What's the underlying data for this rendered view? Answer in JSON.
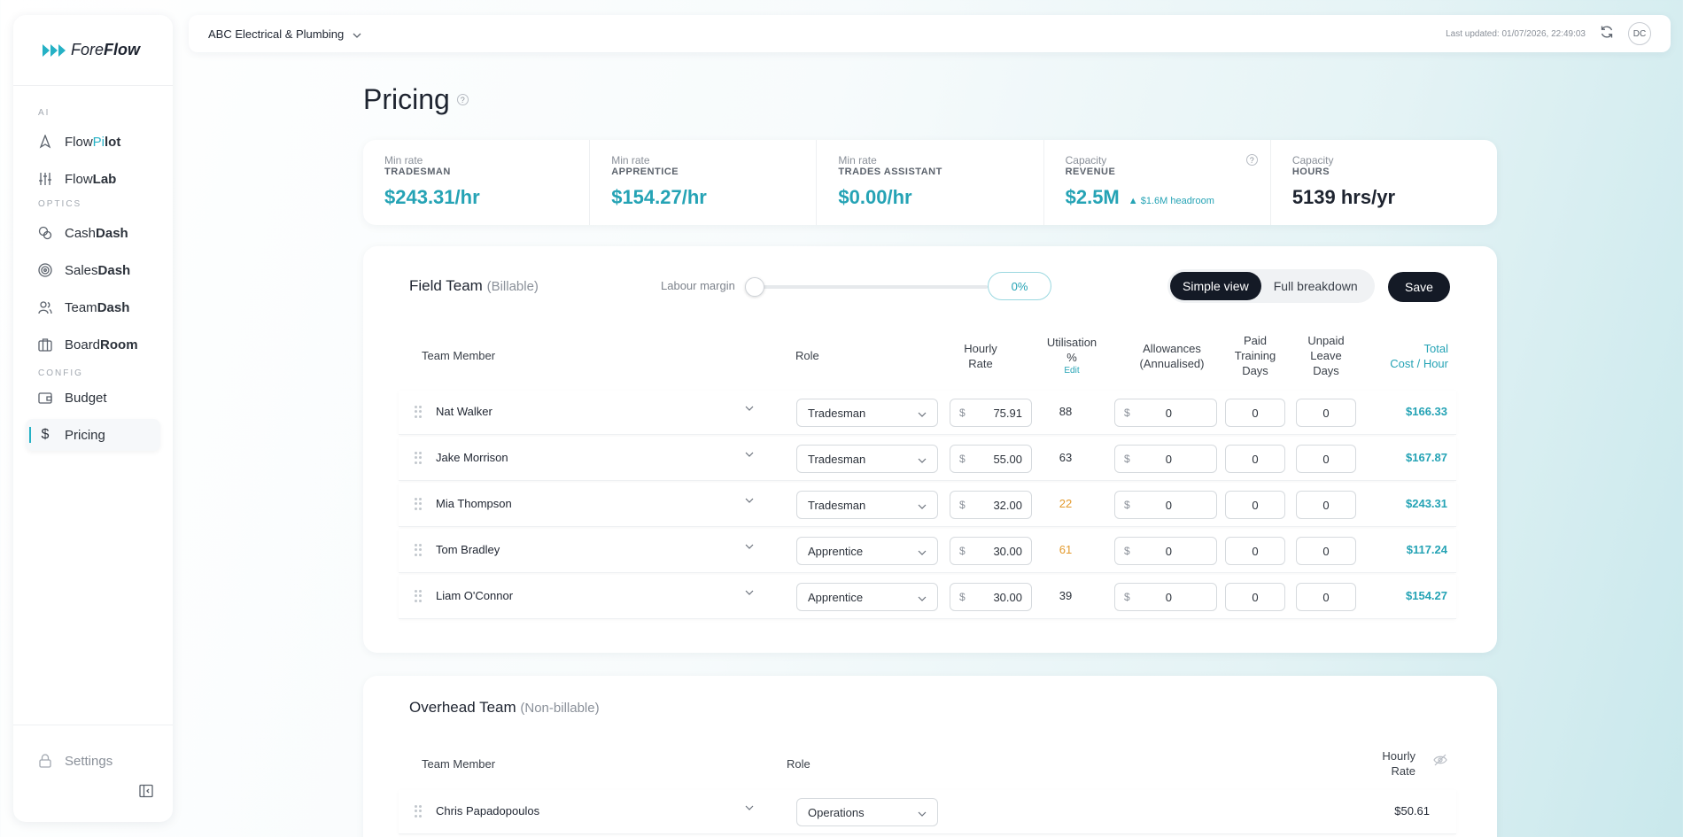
{
  "brand": {
    "name_light": "Fore",
    "name_bold": "Flow"
  },
  "sidebar": {
    "sections": {
      "ai": "AI",
      "optics": "OPTICS",
      "config": "CONFIG"
    },
    "items": [
      {
        "light": "Flow",
        "accent": "Pi",
        "bold": "lot",
        "icon": "rocket-icon"
      },
      {
        "light": "Flow",
        "accent": "",
        "bold": "Lab",
        "icon": "sliders-icon"
      },
      {
        "light": "Cash",
        "accent": "",
        "bold": "Dash",
        "icon": "coins-icon"
      },
      {
        "light": "Sales",
        "accent": "",
        "bold": "Dash",
        "icon": "target-icon"
      },
      {
        "light": "Team",
        "accent": "",
        "bold": "Dash",
        "icon": "team-icon"
      },
      {
        "light": "Board",
        "accent": "",
        "bold": "Room",
        "icon": "briefcase-icon"
      },
      {
        "light": "Budget",
        "accent": "",
        "bold": "",
        "icon": "wallet-icon"
      },
      {
        "light": "Pricing",
        "accent": "",
        "bold": "",
        "icon": "dollar-icon"
      }
    ],
    "settings": "Settings"
  },
  "topbar": {
    "company": "ABC Electrical & Plumbing",
    "updated": "Last updated: 01/07/2026, 22:49:03",
    "avatar": "DC"
  },
  "page": {
    "title": "Pricing"
  },
  "stats": [
    {
      "label": "Min rate",
      "sub": "TRADESMAN",
      "value": "$243.31/hr"
    },
    {
      "label": "Min rate",
      "sub": "APPRENTICE",
      "value": "$154.27/hr"
    },
    {
      "label": "Min rate",
      "sub": "TRADES ASSISTANT",
      "value": "$0.00/hr"
    },
    {
      "label": "Capacity",
      "sub": "REVENUE",
      "value": "$2.5M",
      "extra": "▲ $1.6M headroom"
    },
    {
      "label": "Capacity",
      "sub": "HOURS",
      "value": "5139 hrs/yr"
    }
  ],
  "field": {
    "title": "Field Team",
    "subtitle": "(Billable)",
    "margin_label": "Labour margin",
    "margin_value": "0%",
    "views": {
      "simple": "Simple view",
      "full": "Full breakdown"
    },
    "save": "Save",
    "headers": {
      "member": "Team Member",
      "role": "Role",
      "rate": "Hourly\nRate",
      "util": "Utilisation\n%",
      "util_edit": "Edit",
      "allow": "Allowances\n(Annualised)",
      "training": "Paid\nTraining\nDays",
      "leave": "Unpaid\nLeave\nDays",
      "total": "Total\nCost / Hour"
    },
    "currency": "$",
    "rows": [
      {
        "name": "Nat Walker",
        "role": "Tradesman",
        "rate": "75.91",
        "util": "88",
        "allow": "0",
        "training": "0",
        "leave": "0",
        "total": "$166.33"
      },
      {
        "name": "Jake Morrison",
        "role": "Tradesman",
        "rate": "55.00",
        "util": "63",
        "allow": "0",
        "training": "0",
        "leave": "0",
        "total": "$167.87"
      },
      {
        "name": "Mia Thompson",
        "role": "Tradesman",
        "rate": "32.00",
        "util": "22",
        "allow": "0",
        "training": "0",
        "leave": "0",
        "total": "$243.31"
      },
      {
        "name": "Tom Bradley",
        "role": "Apprentice",
        "rate": "30.00",
        "util": "61",
        "allow": "0",
        "training": "0",
        "leave": "0",
        "total": "$117.24"
      },
      {
        "name": "Liam O'Connor",
        "role": "Apprentice",
        "rate": "30.00",
        "util": "39",
        "allow": "0",
        "training": "0",
        "leave": "0",
        "total": "$154.27"
      }
    ]
  },
  "overhead": {
    "title": "Overhead Team",
    "subtitle": "(Non-billable)",
    "headers": {
      "member": "Team Member",
      "role": "Role",
      "rate": "Hourly\nRate"
    },
    "rows": [
      {
        "name": "Chris Papadopoulos",
        "role": "Operations",
        "rate": "$50.61"
      }
    ]
  },
  "colors": {
    "accent": "#25b1c5",
    "dark": "#141a26",
    "warn": "#e39a2d"
  }
}
